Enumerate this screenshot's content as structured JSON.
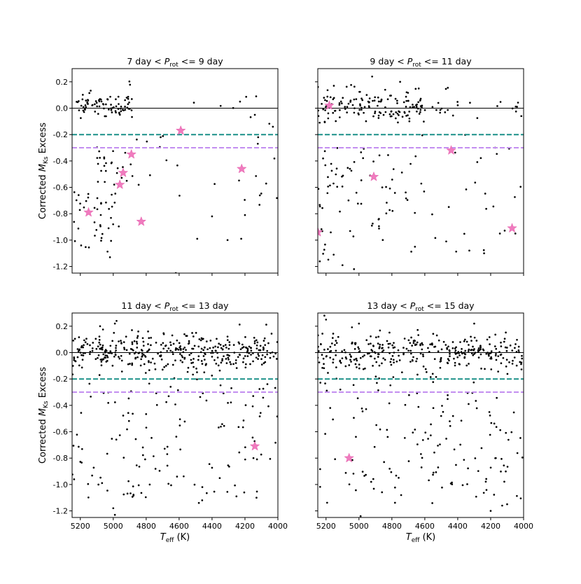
{
  "figure": {
    "ylabel_prefix": "Corrected ",
    "ylabel_symbol": "M",
    "ylabel_sub": "Ks",
    "ylabel_suffix": " Excess",
    "xlabel_symbol": "T",
    "xlabel_sub": "eff",
    "xlabel_suffix": " (K)"
  },
  "chart_data": [
    {
      "type": "scatter",
      "title_pre": "7 day < ",
      "title_sym": "P",
      "title_sub": "rot",
      "title_post": " <= 9 day",
      "xlim": [
        5250,
        4000
      ],
      "ylim": [
        0.3,
        -1.25
      ],
      "xticks": [
        5200,
        5000,
        4800,
        4600,
        4400,
        4200,
        4000
      ],
      "yticks": [
        -1.2,
        -1.0,
        -0.8,
        -0.6,
        -0.4,
        -0.2,
        0.0,
        0.2
      ],
      "ytick_labels": [
        "-1.2",
        "-1.0",
        "-0.8",
        "-0.6",
        "-0.4",
        "-0.2",
        "0.0",
        "0.2"
      ],
      "xtick_labels": [],
      "show_ylabel": true,
      "show_xlabel": false,
      "hlines": [
        {
          "y": 0.0,
          "color": "#000000",
          "style": "solid"
        },
        {
          "y": -0.2,
          "color": "#1a9088",
          "style": "dashed"
        },
        {
          "y": -0.3,
          "color": "#c38ef0",
          "style": "dashed"
        }
      ],
      "stars": [
        [
          5150,
          -0.79
        ],
        [
          4830,
          -0.86
        ],
        [
          4960,
          -0.58
        ],
        [
          4940,
          -0.49
        ],
        [
          4890,
          -0.35
        ],
        [
          4590,
          -0.17
        ],
        [
          4220,
          -0.46
        ]
      ],
      "seed": 11,
      "clusters": [
        {
          "x": [
            5150,
            5240
          ],
          "y": [
            -0.05,
            0.1
          ],
          "n": 14,
          "sigma": 0.03,
          "mode": "band"
        },
        {
          "x": [
            5030,
            5120
          ],
          "y": [
            -0.8,
            0.05
          ],
          "n": 9,
          "mode": "band",
          "sigma": 0.04
        },
        {
          "x": [
            4880,
            5200
          ],
          "y": [
            -0.05,
            0.1
          ],
          "n": 70,
          "mode": "band",
          "sigma": 0.05
        },
        {
          "x": [
            5000,
            5240
          ],
          "y": [
            -1.1,
            -0.6
          ],
          "n": 34,
          "mode": "box"
        },
        {
          "x": [
            4880,
            5100
          ],
          "y": [
            -0.9,
            -0.3
          ],
          "n": 22,
          "mode": "box"
        },
        {
          "x": [
            4600,
            4900
          ],
          "y": [
            -0.7,
            -0.2
          ],
          "n": 10,
          "mode": "box"
        },
        {
          "x": [
            4000,
            4600
          ],
          "y": [
            -1.0,
            -0.15
          ],
          "n": 14,
          "mode": "box"
        },
        {
          "x": [
            4000,
            4600
          ],
          "y": [
            -0.15,
            0.1
          ],
          "n": 8,
          "mode": "box"
        }
      ],
      "points": [
        [
          4620,
          -1.25
        ],
        [
          4490,
          -0.99
        ],
        [
          5020,
          -1.13
        ],
        [
          4400,
          -0.82
        ],
        [
          4200,
          -0.81
        ],
        [
          4140,
          -0.05
        ],
        [
          4230,
          0.05
        ],
        [
          4120,
          -0.22
        ]
      ]
    },
    {
      "type": "scatter",
      "title_pre": "9 day < ",
      "title_sym": "P",
      "title_sub": "rot",
      "title_post": " <= 11 day",
      "xlim": [
        5250,
        4000
      ],
      "ylim": [
        0.3,
        -1.25
      ],
      "xticks": [
        5200,
        5000,
        4800,
        4600,
        4400,
        4200,
        4000
      ],
      "yticks": [
        -1.2,
        -1.0,
        -0.8,
        -0.6,
        -0.4,
        -0.2,
        0.0,
        0.2
      ],
      "ytick_labels": [],
      "xtick_labels": [],
      "show_ylabel": false,
      "show_xlabel": false,
      "hlines": [
        {
          "y": 0.0,
          "color": "#000000",
          "style": "solid"
        },
        {
          "y": -0.2,
          "color": "#1a9088",
          "style": "dashed"
        },
        {
          "y": -0.3,
          "color": "#c38ef0",
          "style": "dashed"
        }
      ],
      "stars": [
        [
          5250,
          -0.94
        ],
        [
          4910,
          -0.52
        ],
        [
          4440,
          -0.32
        ],
        [
          5180,
          0.02
        ],
        [
          4070,
          -0.91
        ]
      ],
      "seed": 23,
      "clusters": [
        {
          "x": [
            4600,
            5250
          ],
          "y": [
            -0.1,
            0.15
          ],
          "n": 150,
          "mode": "band",
          "sigma": 0.06
        },
        {
          "x": [
            4000,
            4600
          ],
          "y": [
            -0.05,
            0.1
          ],
          "n": 24,
          "mode": "band",
          "sigma": 0.05
        },
        {
          "x": [
            5100,
            5250
          ],
          "y": [
            -1.2,
            -0.3
          ],
          "n": 30,
          "mode": "box"
        },
        {
          "x": [
            4700,
            5100
          ],
          "y": [
            -1.0,
            -0.3
          ],
          "n": 40,
          "mode": "box"
        },
        {
          "x": [
            4000,
            4700
          ],
          "y": [
            -1.1,
            -0.2
          ],
          "n": 30,
          "mode": "box"
        }
      ],
      "points": [
        [
          5030,
          -1.22
        ],
        [
          5100,
          -1.19
        ],
        [
          4660,
          -1.05
        ],
        [
          4470,
          -1.01
        ],
        [
          4240,
          -1.1
        ],
        [
          4050,
          -0.95
        ],
        [
          4920,
          0.24
        ],
        [
          4750,
          0.2
        ]
      ]
    },
    {
      "type": "scatter",
      "title_pre": "11 day < ",
      "title_sym": "P",
      "title_sub": "rot",
      "title_post": " <= 13 day",
      "xlim": [
        5250,
        4000
      ],
      "ylim": [
        0.3,
        -1.25
      ],
      "xticks": [
        5200,
        5000,
        4800,
        4600,
        4400,
        4200,
        4000
      ],
      "yticks": [
        -1.2,
        -1.0,
        -0.8,
        -0.6,
        -0.4,
        -0.2,
        0.0,
        0.2
      ],
      "ytick_labels": [
        "-1.2",
        "-1.0",
        "-0.8",
        "-0.6",
        "-0.4",
        "-0.2",
        "0.0",
        "0.2"
      ],
      "xtick_labels": [
        "5200",
        "5000",
        "4800",
        "4600",
        "4400",
        "4200",
        "4000"
      ],
      "show_ylabel": true,
      "show_xlabel": true,
      "hlines": [
        {
          "y": 0.0,
          "color": "#000000",
          "style": "solid"
        },
        {
          "y": -0.2,
          "color": "#1a9088",
          "style": "dashed"
        },
        {
          "y": -0.3,
          "color": "#c38ef0",
          "style": "dashed"
        }
      ],
      "stars": [
        [
          4140,
          -0.71
        ]
      ],
      "seed": 37,
      "clusters": [
        {
          "x": [
            4000,
            5250
          ],
          "y": [
            -0.15,
            0.15
          ],
          "n": 380,
          "mode": "band",
          "sigma": 0.07
        },
        {
          "x": [
            4000,
            5250
          ],
          "y": [
            -1.1,
            -0.35
          ],
          "n": 110,
          "mode": "box"
        },
        {
          "x": [
            4000,
            5250
          ],
          "y": [
            -0.35,
            -0.18
          ],
          "n": 24,
          "mode": "box"
        }
      ],
      "points": [
        [
          4990,
          -1.23
        ],
        [
          5000,
          -1.18
        ],
        [
          4480,
          -1.14
        ],
        [
          4460,
          -1.12
        ],
        [
          4130,
          -1.1
        ],
        [
          4990,
          0.22
        ],
        [
          4980,
          0.24
        ],
        [
          5080,
          0.2
        ]
      ]
    },
    {
      "type": "scatter",
      "title_pre": "13 day < ",
      "title_sym": "P",
      "title_sub": "rot",
      "title_post": " <= 15 day",
      "xlim": [
        5250,
        4000
      ],
      "ylim": [
        0.3,
        -1.25
      ],
      "xticks": [
        5200,
        5000,
        4800,
        4600,
        4400,
        4200,
        4000
      ],
      "yticks": [
        -1.2,
        -1.0,
        -0.8,
        -0.6,
        -0.4,
        -0.2,
        0.0,
        0.2
      ],
      "ytick_labels": [],
      "xtick_labels": [
        "5200",
        "5000",
        "4800",
        "4600",
        "4400",
        "4200",
        "4000"
      ],
      "show_ylabel": false,
      "show_xlabel": true,
      "hlines": [
        {
          "y": 0.0,
          "color": "#000000",
          "style": "solid"
        },
        {
          "y": -0.2,
          "color": "#1a9088",
          "style": "dashed"
        },
        {
          "y": -0.3,
          "color": "#c38ef0",
          "style": "dashed"
        }
      ],
      "stars": [
        [
          5060,
          -0.8
        ]
      ],
      "seed": 53,
      "clusters": [
        {
          "x": [
            4000,
            5250
          ],
          "y": [
            -0.15,
            0.15
          ],
          "n": 330,
          "mode": "band",
          "sigma": 0.07
        },
        {
          "x": [
            4000,
            5250
          ],
          "y": [
            -1.15,
            -0.35
          ],
          "n": 120,
          "mode": "box"
        },
        {
          "x": [
            4000,
            5250
          ],
          "y": [
            -0.35,
            -0.18
          ],
          "n": 22,
          "mode": "box"
        }
      ],
      "points": [
        [
          4990,
          -1.24
        ],
        [
          4200,
          -1.2
        ],
        [
          4130,
          -1.16
        ],
        [
          4100,
          -1.15
        ],
        [
          5210,
          0.28
        ],
        [
          5200,
          0.25
        ],
        [
          5000,
          0.22
        ],
        [
          4300,
          0.22
        ]
      ]
    }
  ]
}
